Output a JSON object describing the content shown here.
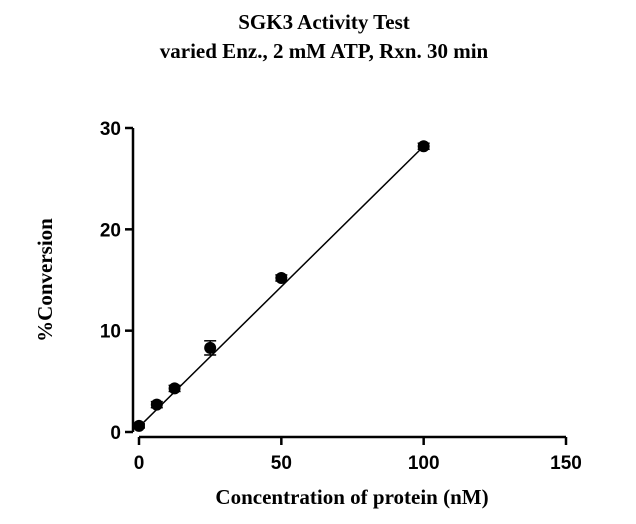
{
  "chart_data": {
    "type": "scatter",
    "title": "SGK3 Activity Test",
    "subtitle": "varied Enz., 2 mM ATP, Rxn. 30 min",
    "xlabel": "Concentration of protein (nM)",
    "ylabel": "%Conversion",
    "xlim": [
      0,
      150
    ],
    "ylim": [
      0,
      30
    ],
    "xticks": [
      0,
      50,
      100,
      150
    ],
    "yticks": [
      0,
      10,
      20,
      30
    ],
    "grid": false,
    "series": [
      {
        "x": [
          0,
          6.25,
          12.5,
          25,
          50,
          100
        ],
        "y": [
          0.6,
          2.7,
          4.3,
          8.3,
          15.2,
          28.2
        ],
        "error": [
          0.2,
          0.3,
          0.3,
          0.7,
          0.3,
          0.3
        ]
      }
    ],
    "fit_line": {
      "x": [
        0,
        100
      ],
      "y": [
        0.5,
        28.2
      ]
    }
  }
}
